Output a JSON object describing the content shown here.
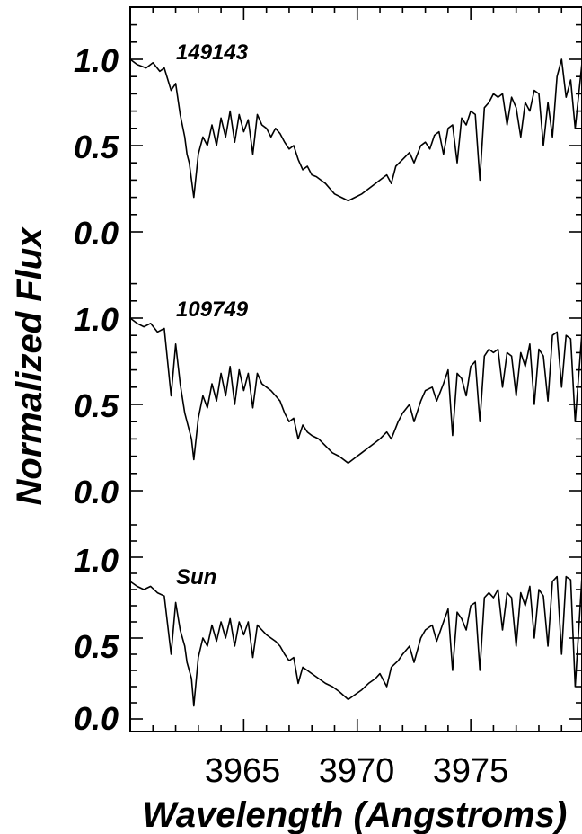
{
  "chart_data": {
    "type": "line",
    "xlabel": "Wavelength (Angstroms)",
    "ylabel": "Normalized Flux",
    "xlim": [
      3960.0,
      3979.9
    ],
    "x_ticks": [
      "3965",
      "3970",
      "3975"
    ],
    "y_ticks": [
      "1.0",
      "0.5",
      "0.0"
    ],
    "grid": false,
    "series": [
      {
        "name": "149143",
        "points": [
          [
            3960.0,
            1.0
          ],
          [
            3960.3,
            0.97
          ],
          [
            3960.7,
            0.95
          ],
          [
            3961.0,
            0.98
          ],
          [
            3961.3,
            0.93
          ],
          [
            3961.5,
            0.95
          ],
          [
            3961.8,
            0.82
          ],
          [
            3962.0,
            0.86
          ],
          [
            3962.2,
            0.68
          ],
          [
            3962.4,
            0.55
          ],
          [
            3962.5,
            0.45
          ],
          [
            3962.6,
            0.4
          ],
          [
            3962.8,
            0.2
          ],
          [
            3963.0,
            0.45
          ],
          [
            3963.2,
            0.55
          ],
          [
            3963.4,
            0.5
          ],
          [
            3963.6,
            0.62
          ],
          [
            3963.8,
            0.5
          ],
          [
            3964.0,
            0.66
          ],
          [
            3964.2,
            0.55
          ],
          [
            3964.4,
            0.7
          ],
          [
            3964.6,
            0.52
          ],
          [
            3964.8,
            0.68
          ],
          [
            3965.0,
            0.58
          ],
          [
            3965.2,
            0.65
          ],
          [
            3965.4,
            0.45
          ],
          [
            3965.6,
            0.68
          ],
          [
            3965.8,
            0.62
          ],
          [
            3966.0,
            0.6
          ],
          [
            3966.2,
            0.55
          ],
          [
            3966.4,
            0.6
          ],
          [
            3966.6,
            0.57
          ],
          [
            3966.8,
            0.52
          ],
          [
            3967.0,
            0.48
          ],
          [
            3967.2,
            0.5
          ],
          [
            3967.4,
            0.42
          ],
          [
            3967.6,
            0.36
          ],
          [
            3967.8,
            0.38
          ],
          [
            3968.0,
            0.33
          ],
          [
            3968.2,
            0.32
          ],
          [
            3968.4,
            0.3
          ],
          [
            3968.6,
            0.28
          ],
          [
            3968.8,
            0.25
          ],
          [
            3969.0,
            0.22
          ],
          [
            3969.3,
            0.2
          ],
          [
            3969.6,
            0.18
          ],
          [
            3969.9,
            0.2
          ],
          [
            3970.2,
            0.22
          ],
          [
            3970.5,
            0.25
          ],
          [
            3970.8,
            0.28
          ],
          [
            3971.0,
            0.3
          ],
          [
            3971.3,
            0.33
          ],
          [
            3971.5,
            0.28
          ],
          [
            3971.7,
            0.38
          ],
          [
            3972.0,
            0.42
          ],
          [
            3972.3,
            0.46
          ],
          [
            3972.5,
            0.4
          ],
          [
            3972.8,
            0.5
          ],
          [
            3973.0,
            0.52
          ],
          [
            3973.2,
            0.48
          ],
          [
            3973.4,
            0.56
          ],
          [
            3973.6,
            0.58
          ],
          [
            3973.8,
            0.45
          ],
          [
            3974.0,
            0.6
          ],
          [
            3974.2,
            0.62
          ],
          [
            3974.4,
            0.4
          ],
          [
            3974.6,
            0.66
          ],
          [
            3974.8,
            0.62
          ],
          [
            3975.0,
            0.7
          ],
          [
            3975.2,
            0.68
          ],
          [
            3975.4,
            0.3
          ],
          [
            3975.6,
            0.72
          ],
          [
            3975.8,
            0.75
          ],
          [
            3976.0,
            0.8
          ],
          [
            3976.2,
            0.78
          ],
          [
            3976.4,
            0.8
          ],
          [
            3976.6,
            0.62
          ],
          [
            3976.8,
            0.78
          ],
          [
            3977.0,
            0.72
          ],
          [
            3977.2,
            0.55
          ],
          [
            3977.4,
            0.75
          ],
          [
            3977.6,
            0.7
          ],
          [
            3977.8,
            0.82
          ],
          [
            3978.0,
            0.8
          ],
          [
            3978.2,
            0.5
          ],
          [
            3978.4,
            0.75
          ],
          [
            3978.6,
            0.55
          ],
          [
            3978.8,
            0.9
          ],
          [
            3979.0,
            1.0
          ],
          [
            3979.2,
            0.78
          ],
          [
            3979.4,
            0.88
          ],
          [
            3979.6,
            0.6
          ],
          [
            3979.9,
            0.98
          ]
        ]
      },
      {
        "name": "109749",
        "points": [
          [
            3960.0,
            1.0
          ],
          [
            3960.3,
            0.97
          ],
          [
            3960.6,
            0.95
          ],
          [
            3960.9,
            0.97
          ],
          [
            3961.2,
            0.92
          ],
          [
            3961.5,
            0.94
          ],
          [
            3961.8,
            0.55
          ],
          [
            3962.0,
            0.85
          ],
          [
            3962.2,
            0.62
          ],
          [
            3962.4,
            0.45
          ],
          [
            3962.5,
            0.4
          ],
          [
            3962.7,
            0.3
          ],
          [
            3962.8,
            0.18
          ],
          [
            3963.0,
            0.42
          ],
          [
            3963.2,
            0.55
          ],
          [
            3963.4,
            0.48
          ],
          [
            3963.6,
            0.62
          ],
          [
            3963.8,
            0.52
          ],
          [
            3964.0,
            0.68
          ],
          [
            3964.2,
            0.55
          ],
          [
            3964.4,
            0.72
          ],
          [
            3964.6,
            0.5
          ],
          [
            3964.8,
            0.7
          ],
          [
            3965.0,
            0.58
          ],
          [
            3965.2,
            0.68
          ],
          [
            3965.4,
            0.48
          ],
          [
            3965.6,
            0.68
          ],
          [
            3965.8,
            0.62
          ],
          [
            3966.0,
            0.6
          ],
          [
            3966.2,
            0.58
          ],
          [
            3966.4,
            0.55
          ],
          [
            3966.6,
            0.52
          ],
          [
            3966.8,
            0.45
          ],
          [
            3967.0,
            0.4
          ],
          [
            3967.2,
            0.42
          ],
          [
            3967.4,
            0.3
          ],
          [
            3967.6,
            0.38
          ],
          [
            3967.8,
            0.34
          ],
          [
            3968.0,
            0.32
          ],
          [
            3968.3,
            0.3
          ],
          [
            3968.6,
            0.26
          ],
          [
            3968.9,
            0.22
          ],
          [
            3969.2,
            0.2
          ],
          [
            3969.6,
            0.16
          ],
          [
            3969.9,
            0.19
          ],
          [
            3970.2,
            0.22
          ],
          [
            3970.5,
            0.25
          ],
          [
            3970.8,
            0.28
          ],
          [
            3971.0,
            0.3
          ],
          [
            3971.3,
            0.34
          ],
          [
            3971.5,
            0.3
          ],
          [
            3971.8,
            0.4
          ],
          [
            3972.0,
            0.45
          ],
          [
            3972.3,
            0.5
          ],
          [
            3972.5,
            0.4
          ],
          [
            3972.8,
            0.52
          ],
          [
            3973.0,
            0.58
          ],
          [
            3973.3,
            0.6
          ],
          [
            3973.5,
            0.52
          ],
          [
            3973.8,
            0.62
          ],
          [
            3974.0,
            0.7
          ],
          [
            3974.2,
            0.32
          ],
          [
            3974.4,
            0.68
          ],
          [
            3974.6,
            0.65
          ],
          [
            3974.8,
            0.55
          ],
          [
            3975.0,
            0.72
          ],
          [
            3975.2,
            0.75
          ],
          [
            3975.4,
            0.4
          ],
          [
            3975.6,
            0.78
          ],
          [
            3975.8,
            0.82
          ],
          [
            3976.0,
            0.8
          ],
          [
            3976.2,
            0.82
          ],
          [
            3976.4,
            0.6
          ],
          [
            3976.6,
            0.8
          ],
          [
            3976.8,
            0.78
          ],
          [
            3977.0,
            0.55
          ],
          [
            3977.2,
            0.8
          ],
          [
            3977.4,
            0.72
          ],
          [
            3977.6,
            0.85
          ],
          [
            3977.8,
            0.5
          ],
          [
            3978.0,
            0.82
          ],
          [
            3978.2,
            0.78
          ],
          [
            3978.4,
            0.52
          ],
          [
            3978.6,
            0.9
          ],
          [
            3978.8,
            0.92
          ],
          [
            3979.0,
            0.6
          ],
          [
            3979.2,
            0.9
          ],
          [
            3979.4,
            0.88
          ],
          [
            3979.6,
            0.4
          ],
          [
            3979.9,
            0.92
          ]
        ]
      },
      {
        "name": "Sun",
        "points": [
          [
            3960.0,
            0.85
          ],
          [
            3960.3,
            0.82
          ],
          [
            3960.6,
            0.8
          ],
          [
            3960.9,
            0.82
          ],
          [
            3961.2,
            0.78
          ],
          [
            3961.5,
            0.76
          ],
          [
            3961.8,
            0.4
          ],
          [
            3962.0,
            0.72
          ],
          [
            3962.2,
            0.55
          ],
          [
            3962.4,
            0.45
          ],
          [
            3962.5,
            0.35
          ],
          [
            3962.7,
            0.25
          ],
          [
            3962.8,
            0.08
          ],
          [
            3963.0,
            0.38
          ],
          [
            3963.2,
            0.5
          ],
          [
            3963.4,
            0.45
          ],
          [
            3963.6,
            0.58
          ],
          [
            3963.8,
            0.48
          ],
          [
            3964.0,
            0.6
          ],
          [
            3964.2,
            0.5
          ],
          [
            3964.4,
            0.62
          ],
          [
            3964.6,
            0.45
          ],
          [
            3964.8,
            0.6
          ],
          [
            3965.0,
            0.52
          ],
          [
            3965.2,
            0.6
          ],
          [
            3965.4,
            0.38
          ],
          [
            3965.6,
            0.58
          ],
          [
            3965.8,
            0.55
          ],
          [
            3966.0,
            0.52
          ],
          [
            3966.2,
            0.5
          ],
          [
            3966.4,
            0.48
          ],
          [
            3966.6,
            0.45
          ],
          [
            3966.8,
            0.4
          ],
          [
            3967.0,
            0.36
          ],
          [
            3967.2,
            0.38
          ],
          [
            3967.4,
            0.22
          ],
          [
            3967.6,
            0.32
          ],
          [
            3967.8,
            0.3
          ],
          [
            3968.0,
            0.28
          ],
          [
            3968.3,
            0.25
          ],
          [
            3968.6,
            0.22
          ],
          [
            3968.9,
            0.2
          ],
          [
            3969.2,
            0.17
          ],
          [
            3969.6,
            0.12
          ],
          [
            3969.9,
            0.15
          ],
          [
            3970.2,
            0.18
          ],
          [
            3970.5,
            0.22
          ],
          [
            3970.8,
            0.25
          ],
          [
            3971.0,
            0.28
          ],
          [
            3971.3,
            0.2
          ],
          [
            3971.5,
            0.32
          ],
          [
            3971.8,
            0.36
          ],
          [
            3972.0,
            0.4
          ],
          [
            3972.3,
            0.45
          ],
          [
            3972.5,
            0.35
          ],
          [
            3972.8,
            0.5
          ],
          [
            3973.0,
            0.55
          ],
          [
            3973.3,
            0.58
          ],
          [
            3973.5,
            0.48
          ],
          [
            3973.8,
            0.6
          ],
          [
            3974.0,
            0.68
          ],
          [
            3974.2,
            0.3
          ],
          [
            3974.4,
            0.66
          ],
          [
            3974.6,
            0.62
          ],
          [
            3974.8,
            0.55
          ],
          [
            3975.0,
            0.7
          ],
          [
            3975.2,
            0.72
          ],
          [
            3975.4,
            0.3
          ],
          [
            3975.6,
            0.75
          ],
          [
            3975.8,
            0.78
          ],
          [
            3976.0,
            0.75
          ],
          [
            3976.2,
            0.8
          ],
          [
            3976.4,
            0.55
          ],
          [
            3976.6,
            0.78
          ],
          [
            3976.8,
            0.75
          ],
          [
            3977.0,
            0.45
          ],
          [
            3977.2,
            0.78
          ],
          [
            3977.4,
            0.7
          ],
          [
            3977.6,
            0.82
          ],
          [
            3977.8,
            0.5
          ],
          [
            3978.0,
            0.8
          ],
          [
            3978.2,
            0.76
          ],
          [
            3978.4,
            0.45
          ],
          [
            3978.6,
            0.85
          ],
          [
            3978.8,
            0.88
          ],
          [
            3979.0,
            0.4
          ],
          [
            3979.2,
            0.88
          ],
          [
            3979.4,
            0.86
          ],
          [
            3979.6,
            0.2
          ],
          [
            3979.9,
            0.88
          ]
        ]
      }
    ]
  }
}
